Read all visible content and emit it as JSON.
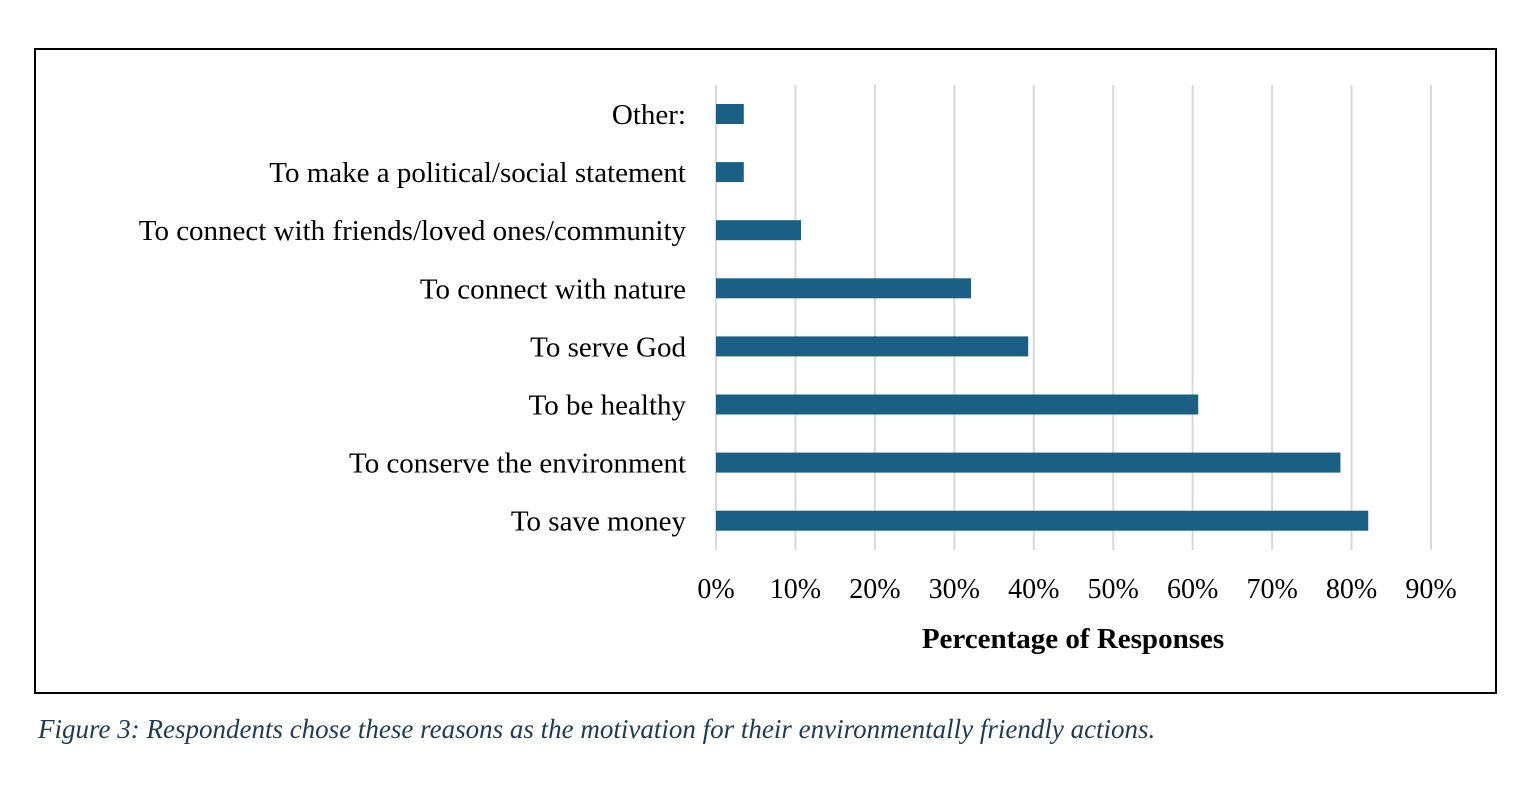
{
  "chart_data": {
    "type": "bar",
    "orientation": "horizontal",
    "categories": [
      "Other:",
      "To make a political/social statement",
      "To connect with friends/loved ones/community",
      "To connect with nature",
      "To serve God",
      "To be healthy",
      "To conserve the environment",
      "To save money"
    ],
    "values": [
      3.5,
      3.5,
      10.7,
      32.1,
      39.3,
      60.7,
      78.6,
      82.1
    ],
    "xlabel": "Percentage of Responses",
    "ylabel": "",
    "xlim": [
      0,
      90
    ],
    "ticks": [
      "0%",
      "10%",
      "20%",
      "30%",
      "40%",
      "50%",
      "60%",
      "70%",
      "80%",
      "90%"
    ],
    "grid": "vertical",
    "legend": "none",
    "bar_color": "#1b6084",
    "grid_color": "#d9d9d9"
  },
  "caption": "Figure 3: Respondents chose these reasons as the motivation for their environmentally friendly actions.",
  "colors": {
    "caption": "#1f3a52",
    "frame": "#000000"
  }
}
